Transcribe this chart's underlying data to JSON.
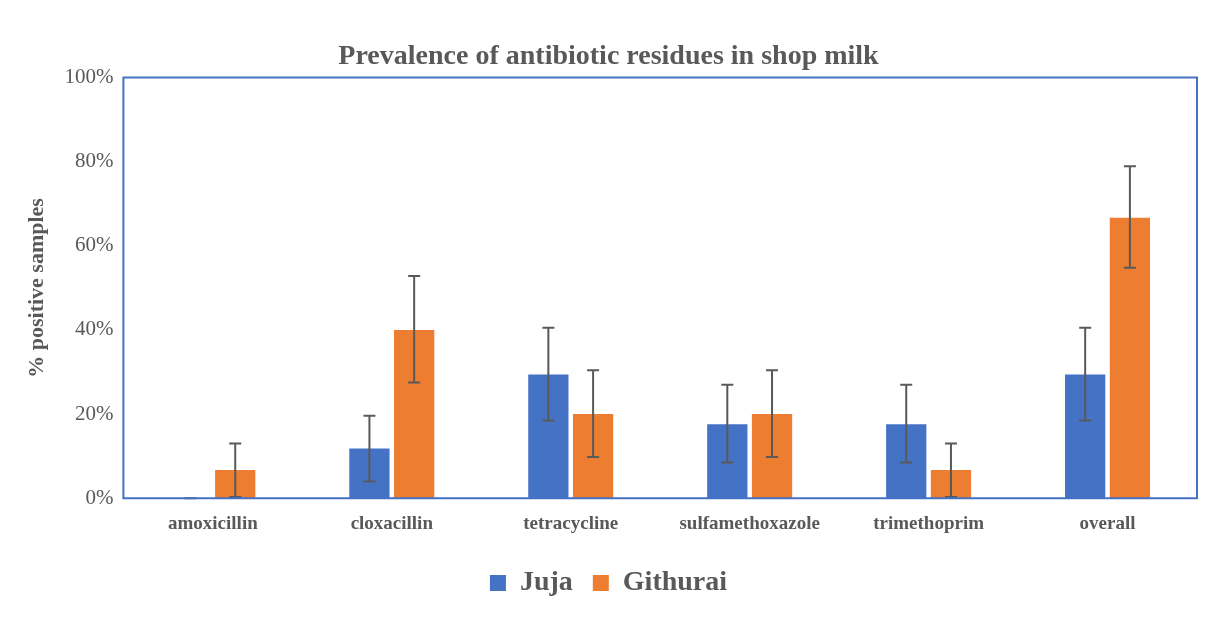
{
  "chart_data": {
    "type": "bar",
    "title": "Prevalence of antibiotic residues in shop milk",
    "ylabel": "% positive samples",
    "categories": [
      "amoxicillin",
      "cloxacillin",
      "tetracycline",
      "sulfamethoxazole",
      "trimethoprim",
      "overall"
    ],
    "series": [
      {
        "name": "Juja",
        "color": "#4472c4",
        "values": [
          0,
          11.8,
          29.4,
          17.6,
          17.6,
          29.4
        ],
        "errors": [
          [
            0,
            0
          ],
          [
            4,
            19.6
          ],
          [
            18.5,
            40.5
          ],
          [
            8.5,
            27
          ],
          [
            8.5,
            27
          ],
          [
            18.5,
            40.5
          ]
        ]
      },
      {
        "name": "Githurai",
        "color": "#ed7d31",
        "values": [
          6.7,
          40,
          20,
          20,
          6.7,
          66.7
        ],
        "errors": [
          [
            0.3,
            13
          ],
          [
            27.5,
            52.8
          ],
          [
            9.8,
            30.4
          ],
          [
            9.8,
            30.4
          ],
          [
            0.3,
            13
          ],
          [
            54.8,
            78.9
          ]
        ]
      }
    ],
    "ylim": [
      0,
      100
    ],
    "yticks": [
      {
        "value": 0,
        "label": "0%"
      },
      {
        "value": 20,
        "label": "20%"
      },
      {
        "value": 40,
        "label": "40%"
      },
      {
        "value": 60,
        "label": "60%"
      },
      {
        "value": 80,
        "label": "80%"
      },
      {
        "value": 100,
        "label": "100%"
      }
    ],
    "grid": false,
    "legend": "bottom"
  }
}
